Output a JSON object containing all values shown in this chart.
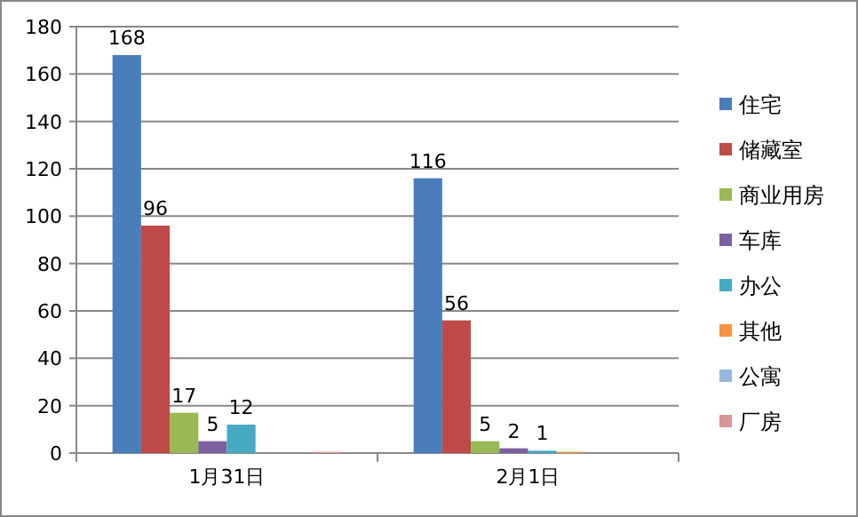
{
  "chart_data": {
    "type": "bar",
    "categories": [
      "1月31日",
      "2月1日"
    ],
    "series": [
      {
        "name": "住宅",
        "color": "#4a7ebb",
        "values": [
          168,
          116
        ],
        "value_labels": [
          "168",
          "116"
        ]
      },
      {
        "name": "储藏室",
        "color": "#be4b48",
        "values": [
          96,
          56
        ],
        "value_labels": [
          "96",
          "56"
        ]
      },
      {
        "name": "商业用房",
        "color": "#98b954",
        "values": [
          17,
          5
        ],
        "value_labels": [
          "17",
          "5"
        ]
      },
      {
        "name": "车库",
        "color": "#7d60a0",
        "values": [
          5,
          2
        ],
        "value_labels": [
          "5",
          "2"
        ]
      },
      {
        "name": "办公",
        "color": "#46aac5",
        "values": [
          12,
          1
        ],
        "value_labels": [
          "12",
          "1"
        ]
      },
      {
        "name": "其他",
        "color": "#f69240",
        "values": [
          0,
          0.5
        ],
        "value_labels": [
          null,
          null
        ]
      },
      {
        "name": "公寓",
        "color": "#97b6dc",
        "values": [
          0,
          0
        ],
        "value_labels": [
          null,
          null
        ]
      },
      {
        "name": "厂房",
        "color": "#d99694",
        "values": [
          0.5,
          0
        ],
        "value_labels": [
          null,
          null
        ]
      }
    ],
    "ylim": [
      0,
      180
    ],
    "yticks": [
      0,
      20,
      40,
      60,
      80,
      100,
      120,
      140,
      160,
      180
    ],
    "grid": "y",
    "legend": "right"
  }
}
